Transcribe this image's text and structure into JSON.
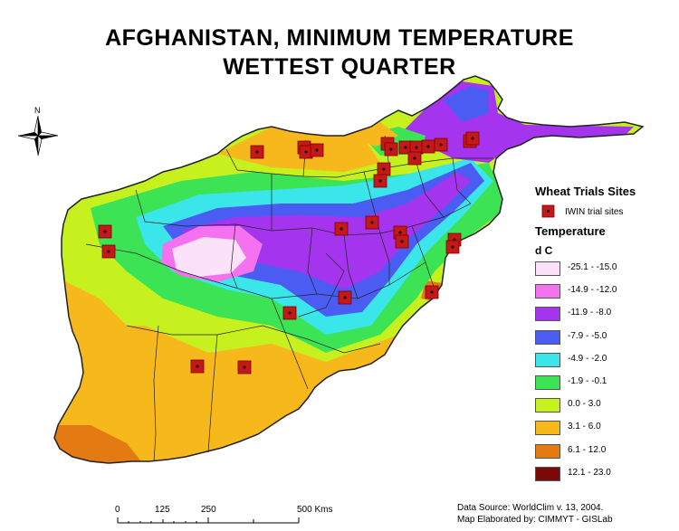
{
  "title": {
    "line1": "AFGHANISTAN,  MINIMUM TEMPERATURE",
    "line2": "WETTEST QUARTER"
  },
  "north_arrow": {
    "label": "N",
    "icon": "compass-rose-icon"
  },
  "legend": {
    "sites_heading": "Wheat Trials Sites",
    "site_label": "IWIN trial sites",
    "temp_heading": "Temperature",
    "unit": "d C",
    "classes": [
      {
        "range": "-25.1 - -15.0",
        "color": "#fbe2f8"
      },
      {
        "range": "-14.9 - -12.0",
        "color": "#f472f0"
      },
      {
        "range": "-11.9 - -8.0",
        "color": "#a534ee"
      },
      {
        "range": "-7.9 - -5.0",
        "color": "#4a5cf2"
      },
      {
        "range": "-4.9 - -2.0",
        "color": "#3be6ea"
      },
      {
        "range": "-1.9 - -0.1",
        "color": "#3be355"
      },
      {
        "range": "0.0 - 3.0",
        "color": "#c7f01f"
      },
      {
        "range": "3.1 - 6.0",
        "color": "#f7b81c"
      },
      {
        "range": "6.1 - 12.0",
        "color": "#e47a12"
      },
      {
        "range": "12.1 - 23.0",
        "color": "#7a0a0a"
      }
    ]
  },
  "scale_bar": {
    "ticks": [
      "0",
      "125",
      "250",
      "500 Kms"
    ]
  },
  "source": {
    "line1": "Data Source: WorldClim v. 13,  2004.",
    "line2": "Map Elaborated by: CIMMYT - GISLab"
  },
  "colors": {
    "site_marker": "#c51818",
    "border": "#222222"
  }
}
